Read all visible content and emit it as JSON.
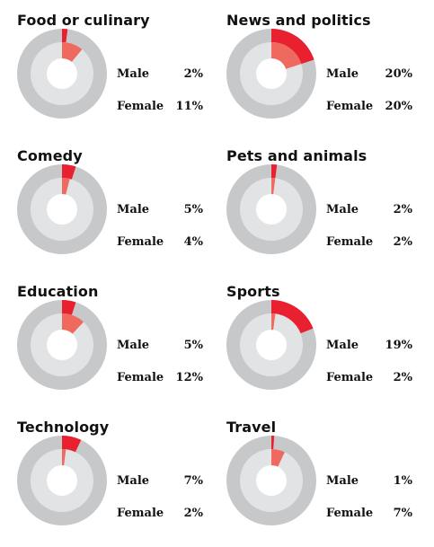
{
  "colors": {
    "outer_track": "#c7c8ca",
    "inner_track": "#e2e3e5",
    "hole": "#ffffff",
    "male": "#e8202f",
    "female": "#f0695f"
  },
  "labels": {
    "male": "Male",
    "female": "Female"
  },
  "chart_data": [
    {
      "type": "donut",
      "title": "Food or culinary",
      "series": [
        {
          "name": "Male",
          "value": 2,
          "label": "2%"
        },
        {
          "name": "Female",
          "value": 11,
          "label": "11%"
        }
      ]
    },
    {
      "type": "donut",
      "title": "News and politics",
      "series": [
        {
          "name": "Male",
          "value": 20,
          "label": "20%"
        },
        {
          "name": "Female",
          "value": 20,
          "label": "20%"
        }
      ]
    },
    {
      "type": "donut",
      "title": "Comedy",
      "series": [
        {
          "name": "Male",
          "value": 5,
          "label": "5%"
        },
        {
          "name": "Female",
          "value": 4,
          "label": "4%"
        }
      ]
    },
    {
      "type": "donut",
      "title": "Pets and animals",
      "series": [
        {
          "name": "Male",
          "value": 2,
          "label": "2%"
        },
        {
          "name": "Female",
          "value": 2,
          "label": "2%"
        }
      ]
    },
    {
      "type": "donut",
      "title": "Education",
      "series": [
        {
          "name": "Male",
          "value": 5,
          "label": "5%"
        },
        {
          "name": "Female",
          "value": 12,
          "label": "12%"
        }
      ]
    },
    {
      "type": "donut",
      "title": "Sports",
      "series": [
        {
          "name": "Male",
          "value": 19,
          "label": "19%"
        },
        {
          "name": "Female",
          "value": 2,
          "label": "2%"
        }
      ]
    },
    {
      "type": "donut",
      "title": "Technology",
      "series": [
        {
          "name": "Male",
          "value": 7,
          "label": "7%"
        },
        {
          "name": "Female",
          "value": 2,
          "label": "2%"
        }
      ]
    },
    {
      "type": "donut",
      "title": "Travel",
      "series": [
        {
          "name": "Male",
          "value": 1,
          "label": "1%"
        },
        {
          "name": "Female",
          "value": 7,
          "label": "7%"
        }
      ]
    }
  ]
}
